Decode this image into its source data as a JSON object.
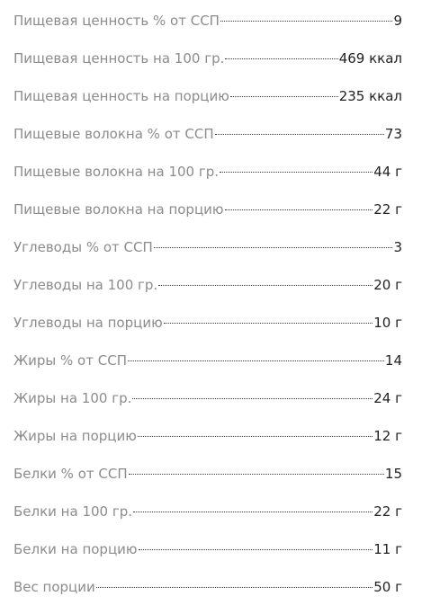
{
  "nutrition": {
    "rows": [
      {
        "label": "Пищевая ценность % от ССП",
        "value": "9"
      },
      {
        "label": "Пищевая ценность на 100 гр.",
        "value": "469 ккал"
      },
      {
        "label": "Пищевая ценность на порцию",
        "value": "235 ккал"
      },
      {
        "label": "Пищевые волокна % от ССП",
        "value": "73"
      },
      {
        "label": "Пищевые волокна на 100 гр.",
        "value": "44 г"
      },
      {
        "label": "Пищевые волокна на порцию",
        "value": "22 г"
      },
      {
        "label": "Углеводы % от ССП",
        "value": "3"
      },
      {
        "label": "Углеводы на 100 гр.",
        "value": "20 г"
      },
      {
        "label": "Углеводы на порцию",
        "value": "10 г"
      },
      {
        "label": "Жиры % от ССП",
        "value": "14"
      },
      {
        "label": "Жиры на 100 гр.",
        "value": "24 г"
      },
      {
        "label": "Жиры на порцию",
        "value": "12 г"
      },
      {
        "label": "Белки % от ССП",
        "value": "15"
      },
      {
        "label": "Белки на 100 гр.",
        "value": "22 г"
      },
      {
        "label": "Белки на порцию",
        "value": "11 г"
      },
      {
        "label": "Вес порции",
        "value": "50 г"
      }
    ]
  }
}
